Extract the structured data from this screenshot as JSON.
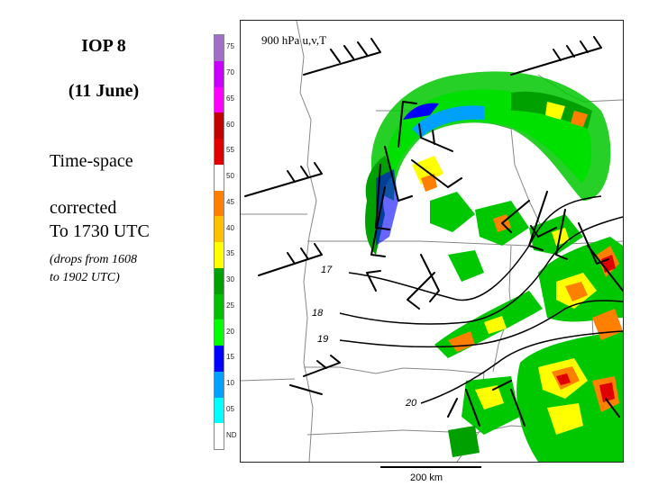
{
  "header": {
    "title": "IOP 8",
    "date": "(11 June)"
  },
  "notes": {
    "line1": "Time-space",
    "line2": "corrected",
    "line3": "To 1730 UTC",
    "drops_line1": "(drops from 1608",
    "drops_line2": "to 1902 UTC)"
  },
  "map": {
    "title": "900 hPa u,v,T",
    "contour_labels": [
      "17",
      "18",
      "19",
      "20"
    ],
    "scale_label": "200 km"
  },
  "colorbar": {
    "labels": [
      "75",
      "70",
      "65",
      "60",
      "55",
      "50",
      "45",
      "40",
      "35",
      "30",
      "25",
      "20",
      "15",
      "10",
      "05",
      "ND"
    ],
    "colors": [
      "#a070c8",
      "#c800ff",
      "#ff00ff",
      "#c00000",
      "#e00000",
      "#ffffff",
      "#ff8000",
      "#ffc000",
      "#ffff00",
      "#00a000",
      "#00c000",
      "#00ff00",
      "#0000ff",
      "#00a0ff",
      "#00ffff",
      "#ffffff"
    ]
  }
}
